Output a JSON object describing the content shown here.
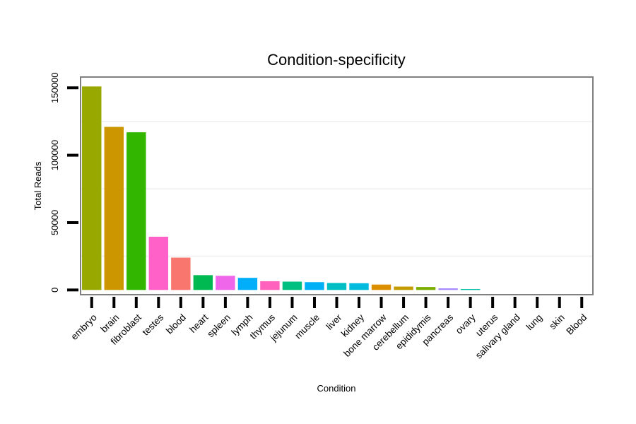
{
  "chart_data": {
    "type": "bar",
    "title": "Condition-specificity",
    "xlabel": "Condition",
    "ylabel": "Total Reads",
    "ylim": [
      -3500,
      158000
    ],
    "yticks": [
      0,
      50000,
      100000,
      150000
    ],
    "ytick_labels": [
      "0",
      "50000",
      "100000",
      "150000"
    ],
    "grid": true,
    "categories": [
      "embryo",
      "brain",
      "fibroblast",
      "testes",
      "blood",
      "heart",
      "spleen",
      "lymph",
      "thymus",
      "jejunum",
      "muscle",
      "liver",
      "kidney",
      "bone marrow",
      "cerebellum",
      "epididymis",
      "pancreas",
      "ovary",
      "uterus",
      "salivary gland",
      "lung",
      "skin",
      "Blood"
    ],
    "values": [
      151000,
      121000,
      117000,
      39500,
      24000,
      11000,
      10500,
      9000,
      6500,
      6200,
      5800,
      5200,
      5000,
      4000,
      2500,
      2200,
      1200,
      700,
      0,
      0,
      0,
      0,
      0
    ],
    "colors": [
      "#99A800",
      "#CC9600",
      "#33B600",
      "#FF61C9",
      "#F8766D",
      "#00BA51",
      "#F066EA",
      "#00AEFA",
      "#FF62BC",
      "#00C081",
      "#00B0F6",
      "#00BFC4",
      "#00BBDB",
      "#DB8E00",
      "#C39B00",
      "#7CAE00",
      "#A58AFF",
      "#00C1A7",
      "#00A5FF",
      "#E58700",
      "#1FB700",
      "#6BB100",
      "#00BCD8"
    ]
  }
}
